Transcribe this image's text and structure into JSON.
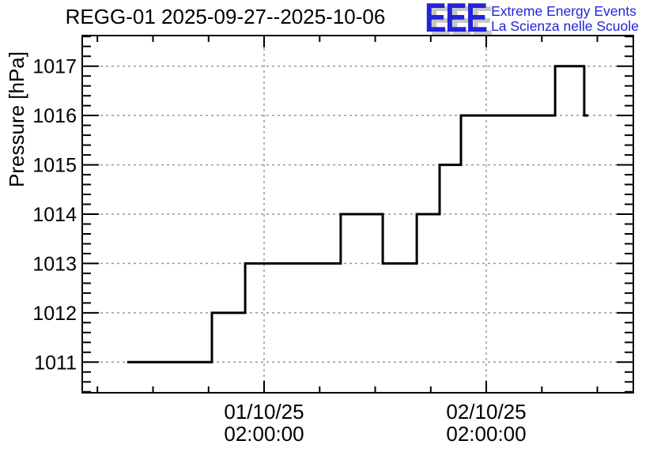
{
  "logo": {
    "acronym": "EEE",
    "tagline_line1": "Extreme Energy Events",
    "tagline_line2": "La Scienza nelle Scuole",
    "text_color": "#2323D7",
    "shadow_color": "#C6C6C6"
  },
  "chart_data": {
    "type": "line",
    "drawstyle": "steps-post",
    "title": "REGG-01 2025-09-27--2025-10-06",
    "xlabel": "",
    "ylabel": "Pressure [hPa]",
    "legend": "none",
    "grid": true,
    "colors": {
      "line": "#000000",
      "grid": "#999999",
      "frame": "#000000"
    },
    "x_axis": {
      "unit": "days relative to the 01/10/25 02:00:00 tick (1.0 = 24 h)",
      "range": [
        -0.8185,
        1.6619
      ],
      "major_ticks": [
        {
          "x": 0,
          "label_line1": "01/10/25",
          "label_line2": "02:00:00"
        },
        {
          "x": 1,
          "label_line1": "02/10/25",
          "label_line2": "02:00:00"
        }
      ],
      "minor_tick_step": 0.25
    },
    "y_axis": {
      "range": [
        1010.38,
        1017.62
      ],
      "major_ticks": [
        1011,
        1012,
        1013,
        1014,
        1015,
        1016,
        1017
      ],
      "minor_tick_step": 0.2
    },
    "series": [
      {
        "name": "pressure",
        "note": "step level start points [x_days, hPa]; each level holds until next x",
        "points": [
          [
            -0.616,
            1011
          ],
          [
            -0.235,
            1012
          ],
          [
            -0.085,
            1013
          ],
          [
            0.345,
            1014
          ],
          [
            0.534,
            1013
          ],
          [
            0.687,
            1014
          ],
          [
            0.79,
            1015
          ],
          [
            0.886,
            1016
          ],
          [
            1.31,
            1017
          ],
          [
            1.441,
            1016
          ]
        ],
        "end_x": 1.459
      }
    ]
  }
}
